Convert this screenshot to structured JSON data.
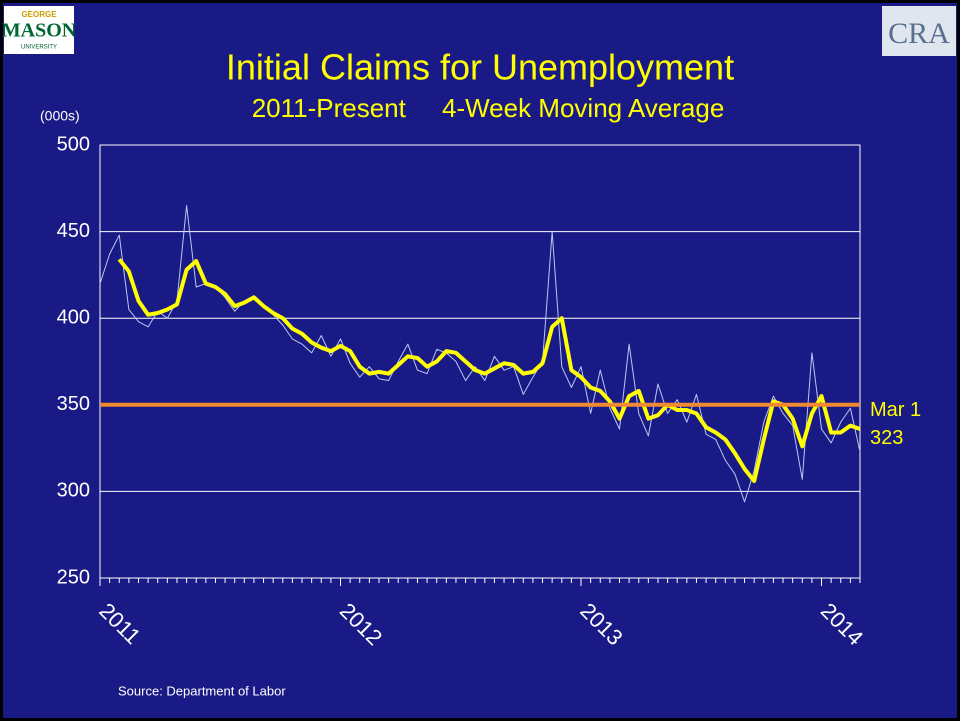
{
  "logos": {
    "left": [
      "GEORGE",
      "MASON",
      "UNIVERSITY"
    ],
    "right": "CRA"
  },
  "chart_data": {
    "type": "line",
    "title": "Initial Claims for Unemployment",
    "subtitle": "2011-Present     4-Week Moving Average",
    "y_label": "(000s)",
    "source": "Source: Department of Labor",
    "x": [
      2011,
      2011.04,
      2011.08,
      2011.12,
      2011.16,
      2011.2,
      2011.24,
      2011.28,
      2011.32,
      2011.36,
      2011.4,
      2011.44,
      2011.48,
      2011.52,
      2011.56,
      2011.6,
      2011.64,
      2011.68,
      2011.72,
      2011.76,
      2011.8,
      2011.84,
      2011.88,
      2011.92,
      2011.96,
      2012,
      2012.04,
      2012.08,
      2012.12,
      2012.16,
      2012.2,
      2012.24,
      2012.28,
      2012.32,
      2012.36,
      2012.4,
      2012.44,
      2012.48,
      2012.52,
      2012.56,
      2012.6,
      2012.64,
      2012.68,
      2012.72,
      2012.76,
      2012.8,
      2012.84,
      2012.88,
      2012.92,
      2012.96,
      2013,
      2013.04,
      2013.08,
      2013.12,
      2013.16,
      2013.2,
      2013.24,
      2013.28,
      2013.32,
      2013.36,
      2013.4,
      2013.44,
      2013.48,
      2013.52,
      2013.56,
      2013.6,
      2013.64,
      2013.68,
      2013.72,
      2013.76,
      2013.8,
      2013.84,
      2013.88,
      2013.92,
      2013.96,
      2014,
      2014.04,
      2014.08,
      2014.12,
      2014.16
    ],
    "series": [
      {
        "color": "#b8c8f0",
        "width": 1,
        "values": [
          420,
          437,
          448,
          405,
          398,
          395,
          404,
          400,
          410,
          465,
          418,
          420,
          418,
          412,
          404,
          410,
          413,
          408,
          402,
          396,
          388,
          385,
          380,
          390,
          378,
          388,
          374,
          366,
          372,
          365,
          364,
          375,
          385,
          370,
          368,
          382,
          380,
          375,
          364,
          372,
          364,
          378,
          370,
          372,
          356,
          366,
          375,
          450,
          372,
          360,
          372,
          345,
          370,
          348,
          336,
          385,
          345,
          332,
          362,
          345,
          353,
          340,
          356,
          333,
          330,
          318,
          310,
          294,
          312,
          340,
          355,
          345,
          338,
          307,
          380,
          336,
          328,
          340,
          348,
          323
        ]
      },
      {
        "color": "#ffff00",
        "width": 4,
        "values": [
          null,
          null,
          434,
          427,
          410,
          402,
          403,
          405,
          408,
          428,
          433,
          420,
          418,
          414,
          407,
          409,
          412,
          407,
          403,
          400,
          394,
          391,
          386,
          383,
          381,
          384,
          381,
          372,
          368,
          369,
          368,
          373,
          378,
          377,
          372,
          375,
          381,
          380,
          375,
          370,
          368,
          371,
          374,
          373,
          368,
          369,
          374,
          395,
          400,
          370,
          366,
          360,
          358,
          352,
          342,
          355,
          358,
          342,
          344,
          350,
          347,
          347,
          345,
          337,
          334,
          330,
          322,
          313,
          306,
          330,
          352,
          350,
          342,
          326,
          345,
          355,
          334,
          334,
          338,
          336
        ]
      }
    ],
    "reference_line": {
      "value": 350,
      "color": "#f08a30",
      "labels": [
        "Mar 1",
        "323"
      ]
    },
    "xlim": [
      2011,
      2014.16
    ],
    "xticks": [
      2011,
      2012,
      2013,
      2014
    ],
    "ylim": [
      250,
      500
    ],
    "yticks": [
      250,
      300,
      350,
      400,
      450,
      500
    ],
    "grid": true
  }
}
